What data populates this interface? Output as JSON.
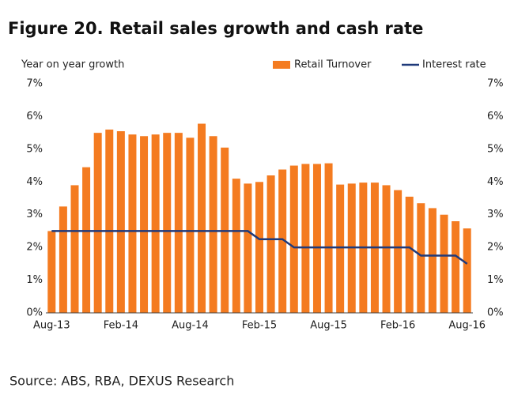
{
  "chart_data": {
    "type": "bar_line",
    "title": "Figure 20. Retail sales growth and cash rate",
    "y_label": "Year on year growth",
    "source": "Source: ABS, RBA, DEXUS Research",
    "categories": [
      "Aug-13",
      null,
      null,
      null,
      null,
      null,
      "Feb-14",
      null,
      null,
      null,
      null,
      null,
      "Aug-14",
      null,
      null,
      null,
      null,
      null,
      "Feb-15",
      null,
      null,
      null,
      null,
      null,
      "Aug-15",
      null,
      null,
      null,
      null,
      null,
      "Feb-16",
      null,
      null,
      null,
      null,
      null,
      "Aug-16"
    ],
    "series": [
      {
        "name": "Retail Turnover",
        "type": "bar",
        "color": "#f47b20",
        "values": [
          2.5,
          3.25,
          3.9,
          4.45,
          5.5,
          5.6,
          5.55,
          5.45,
          5.4,
          5.45,
          5.5,
          5.5,
          5.35,
          5.78,
          5.4,
          5.05,
          4.1,
          3.95,
          4.0,
          4.2,
          4.38,
          4.5,
          4.55,
          4.55,
          4.57,
          3.92,
          3.95,
          3.98,
          3.98,
          3.9,
          3.75,
          3.55,
          3.35,
          3.2,
          3.0,
          2.8,
          2.58
        ]
      },
      {
        "name": "Interest rate",
        "type": "line",
        "axis": "y2",
        "color": "#1f3a7a",
        "values": [
          2.5,
          2.5,
          2.5,
          2.5,
          2.5,
          2.5,
          2.5,
          2.5,
          2.5,
          2.5,
          2.5,
          2.5,
          2.5,
          2.5,
          2.5,
          2.5,
          2.5,
          2.5,
          2.25,
          2.25,
          2.25,
          2.0,
          2.0,
          2.0,
          2.0,
          2.0,
          2.0,
          2.0,
          2.0,
          2.0,
          2.0,
          2.0,
          1.75,
          1.75,
          1.75,
          1.75,
          1.5
        ]
      }
    ],
    "ylim": [
      0,
      7
    ],
    "yticks": [
      {
        "value": 0,
        "label": "0%"
      },
      {
        "value": 1,
        "label": "1%"
      },
      {
        "value": 2,
        "label": "2%"
      },
      {
        "value": 3,
        "label": "3%"
      },
      {
        "value": 4,
        "label": "4%"
      },
      {
        "value": 5,
        "label": "5%"
      },
      {
        "value": 6,
        "label": "6%"
      },
      {
        "value": 7,
        "label": "7%"
      }
    ],
    "y2lim": [
      0,
      7
    ],
    "y2ticks": [
      {
        "value": 0,
        "label": "0%"
      },
      {
        "value": 1,
        "label": "1%"
      },
      {
        "value": 2,
        "label": "2%"
      },
      {
        "value": 3,
        "label": "3%"
      },
      {
        "value": 4,
        "label": "4%"
      },
      {
        "value": 5,
        "label": "5%"
      },
      {
        "value": 6,
        "label": "6%"
      },
      {
        "value": 7,
        "label": "7%"
      }
    ],
    "legend": "top-right"
  }
}
